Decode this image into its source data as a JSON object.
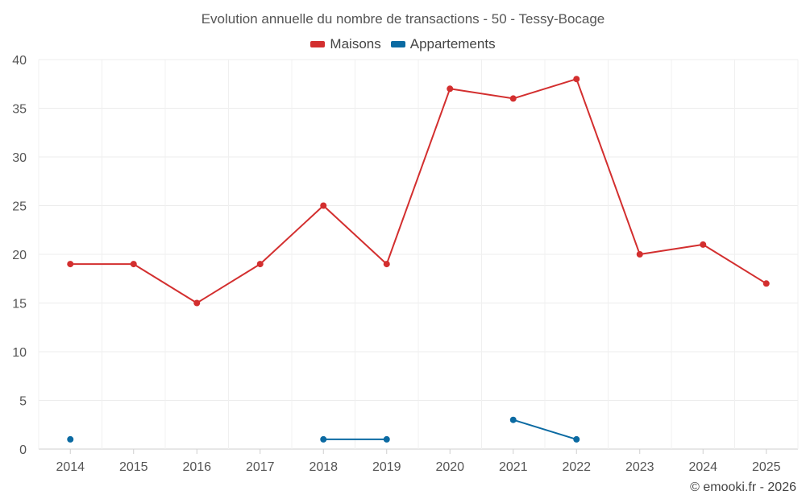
{
  "chart_data": {
    "type": "line",
    "title": "Evolution annuelle du nombre de transactions - 50 - Tessy-Bocage",
    "categories": [
      "2014",
      "2015",
      "2016",
      "2017",
      "2018",
      "2019",
      "2020",
      "2021",
      "2022",
      "2023",
      "2024",
      "2025"
    ],
    "series": [
      {
        "name": "Maisons",
        "color": "#d32f2f",
        "values": [
          19,
          19,
          15,
          19,
          25,
          19,
          37,
          36,
          38,
          20,
          21,
          17
        ]
      },
      {
        "name": "Appartements",
        "color": "#0b6aa2",
        "values": [
          1,
          null,
          null,
          null,
          1,
          1,
          null,
          3,
          1,
          null,
          null,
          null
        ]
      }
    ],
    "xlabel": "",
    "ylabel": "",
    "ylim": [
      0,
      40
    ],
    "yticks": [
      0,
      5,
      10,
      15,
      20,
      25,
      30,
      35,
      40
    ],
    "grid": true,
    "legend": "top-center"
  },
  "footer": {
    "credit": "© emooki.fr - 2026"
  }
}
